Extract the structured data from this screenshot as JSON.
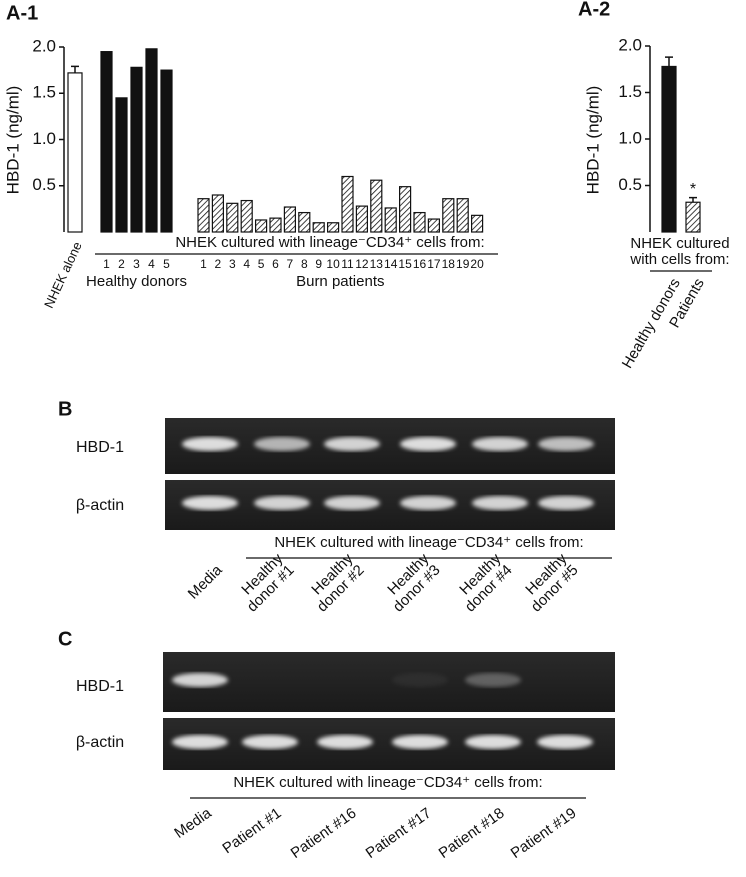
{
  "chart_data": [
    {
      "type": "bar",
      "label": "A-1",
      "ylabel": "HBD-1 (ng/ml)",
      "ylim": [
        0,
        2.0
      ],
      "yticks": [
        0.5,
        {
          "value": 1,
          "label": "1.0"
        },
        1.5,
        {
          "value": 2,
          "label": "2.0"
        }
      ],
      "xlabel": "NHEK cultured with lineage⁻CD34⁺ cells from:",
      "groups": [
        {
          "categories": [
            "NHEK alone"
          ],
          "values": [
            1.72
          ],
          "errors": [
            0.07
          ],
          "color": "#ffffff"
        },
        {
          "name": "Healthy donors",
          "categories": [
            "1",
            "2",
            "3",
            "4",
            "5"
          ],
          "values": [
            1.95,
            1.45,
            1.78,
            1.98,
            1.75
          ],
          "color": "#111111"
        },
        {
          "name": "Burn patients",
          "categories": [
            "1",
            "2",
            "3",
            "4",
            "5",
            "6",
            "7",
            "8",
            "9",
            "10",
            "11",
            "12",
            "13",
            "14",
            "15",
            "16",
            "17",
            "18",
            "19",
            "20"
          ],
          "values": [
            0.36,
            0.4,
            0.31,
            0.34,
            0.13,
            0.15,
            0.27,
            0.21,
            0.1,
            0.1,
            0.6,
            0.28,
            0.56,
            0.26,
            0.49,
            0.21,
            0.14,
            0.36,
            0.36,
            0.18
          ],
          "color": "#ffffff",
          "hatch": true
        }
      ]
    },
    {
      "type": "bar",
      "label": "A-2",
      "ylabel": "HBD-1 (ng/ml)",
      "ylim": [
        0,
        2.0
      ],
      "yticks": [
        0.5,
        {
          "value": 1,
          "label": "1.0"
        },
        1.5,
        {
          "value": 2,
          "label": "2.0"
        }
      ],
      "xlabel": [
        "NHEK cultured",
        "with cells from:"
      ],
      "categories": [
        "Healthy donors",
        "Patients"
      ],
      "values": [
        1.78,
        0.32
      ],
      "errors": [
        0.1,
        0.05
      ],
      "colors": [
        "#111111",
        "#ffffff"
      ],
      "hatch": [
        false,
        true
      ],
      "annotations": [
        {
          "text": "*",
          "category": "Patients"
        }
      ]
    }
  ],
  "gels": [
    {
      "label": "B",
      "rows": [
        "HBD-1",
        "β-actin"
      ],
      "xlabel": "NHEK cultured with lineage⁻CD34⁺ cells from:",
      "lanes": [
        [
          "Media"
        ],
        [
          "Healthy",
          "donor #1"
        ],
        [
          "Healthy",
          "donor #2"
        ],
        [
          "Healthy",
          "donor #3"
        ],
        [
          "Healthy",
          "donor #4"
        ],
        [
          "Healthy",
          "donor #5"
        ]
      ]
    },
    {
      "label": "C",
      "rows": [
        "HBD-1",
        "β-actin"
      ],
      "xlabel": "NHEK cultured with lineage⁻CD34⁺ cells from:",
      "lanes": [
        [
          "Media"
        ],
        [
          "Patient #1"
        ],
        [
          "Patient #16"
        ],
        [
          "Patient #17"
        ],
        [
          "Patient #18"
        ],
        [
          "Patient #19"
        ]
      ]
    }
  ]
}
